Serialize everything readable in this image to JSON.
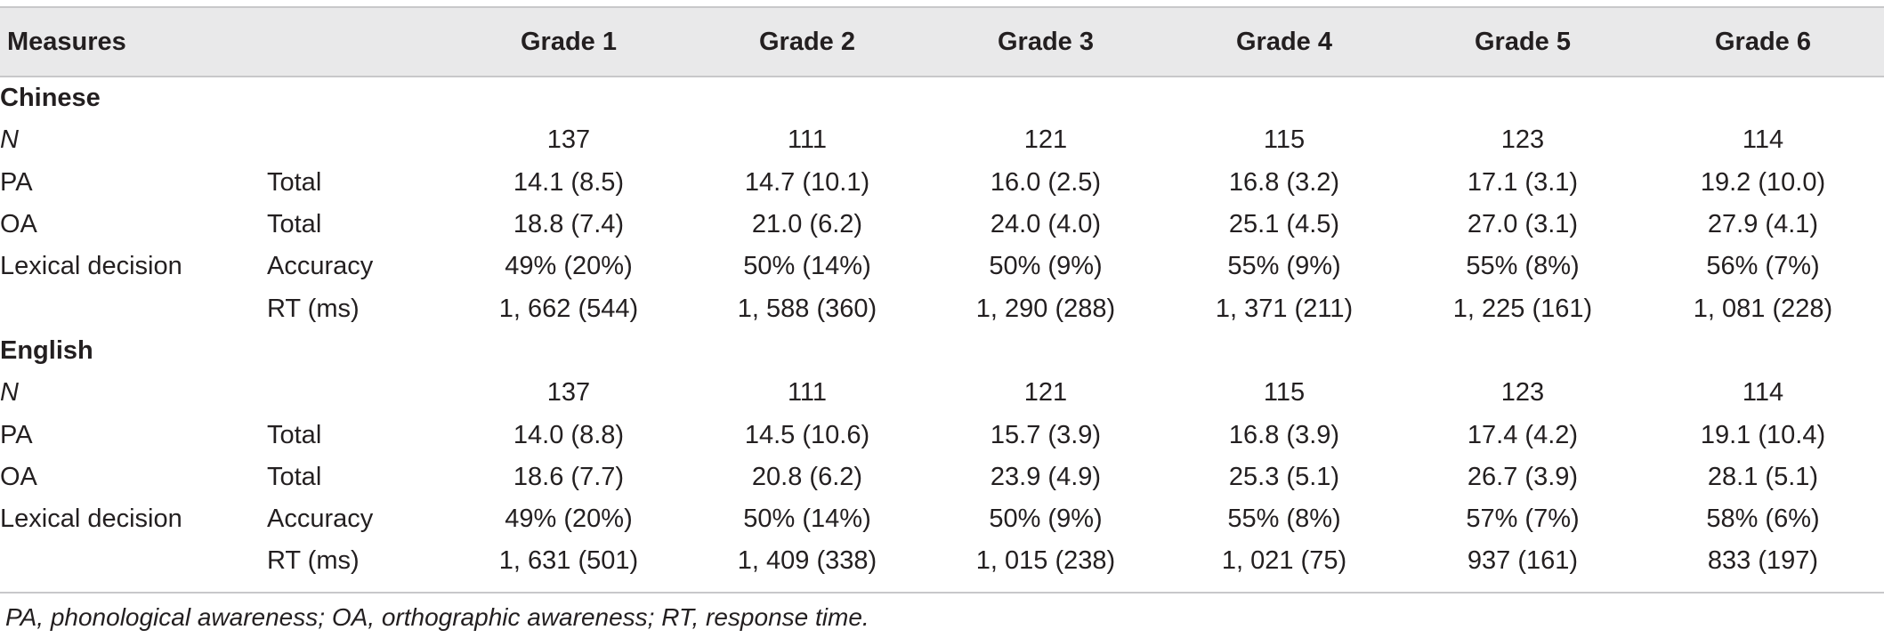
{
  "table": {
    "headers": [
      "Measures",
      "",
      "Grade 1",
      "Grade 2",
      "Grade 3",
      "Grade 4",
      "Grade 5",
      "Grade 6"
    ],
    "sections": [
      {
        "title": "Chinese",
        "rows": [
          {
            "measure": "N",
            "sub": "",
            "values": [
              "137",
              "111",
              "121",
              "115",
              "123",
              "114"
            ]
          },
          {
            "measure": "PA",
            "sub": "Total",
            "values": [
              "14.1 (8.5)",
              "14.7 (10.1)",
              "16.0 (2.5)",
              "16.8 (3.2)",
              "17.1 (3.1)",
              "19.2 (10.0)"
            ]
          },
          {
            "measure": "OA",
            "sub": "Total",
            "values": [
              "18.8 (7.4)",
              "21.0 (6.2)",
              "24.0 (4.0)",
              "25.1 (4.5)",
              "27.0 (3.1)",
              "27.9 (4.1)"
            ]
          },
          {
            "measure": "Lexical decision",
            "sub": "Accuracy",
            "values": [
              "49% (20%)",
              "50% (14%)",
              "50% (9%)",
              "55% (9%)",
              "55% (8%)",
              "56% (7%)"
            ]
          },
          {
            "measure": "",
            "sub": "RT (ms)",
            "values": [
              "1, 662 (544)",
              "1, 588 (360)",
              "1, 290 (288)",
              "1, 371 (211)",
              "1, 225 (161)",
              "1, 081 (228)"
            ]
          }
        ]
      },
      {
        "title": "English",
        "rows": [
          {
            "measure": "N",
            "sub": "",
            "values": [
              "137",
              "111",
              "121",
              "115",
              "123",
              "114"
            ]
          },
          {
            "measure": "PA",
            "sub": "Total",
            "values": [
              "14.0 (8.8)",
              "14.5 (10.6)",
              "15.7 (3.9)",
              "16.8 (3.9)",
              "17.4 (4.2)",
              "19.1 (10.4)"
            ]
          },
          {
            "measure": "OA",
            "sub": "Total",
            "values": [
              "18.6 (7.7)",
              "20.8 (6.2)",
              "23.9 (4.9)",
              "25.3 (5.1)",
              "26.7 (3.9)",
              "28.1 (5.1)"
            ]
          },
          {
            "measure": "Lexical decision",
            "sub": "Accuracy",
            "values": [
              "49% (20%)",
              "50% (14%)",
              "50% (9%)",
              "55% (8%)",
              "57% (7%)",
              "58% (6%)"
            ]
          },
          {
            "measure": "",
            "sub": "RT (ms)",
            "values": [
              "1, 631 (501)",
              "1, 409 (338)",
              "1, 015 (238)",
              "1, 021 (75)",
              "937 (161)",
              "833 (197)"
            ]
          }
        ]
      }
    ]
  },
  "footnote": "PA, phonological awareness; OA, orthographic awareness; RT, response time."
}
